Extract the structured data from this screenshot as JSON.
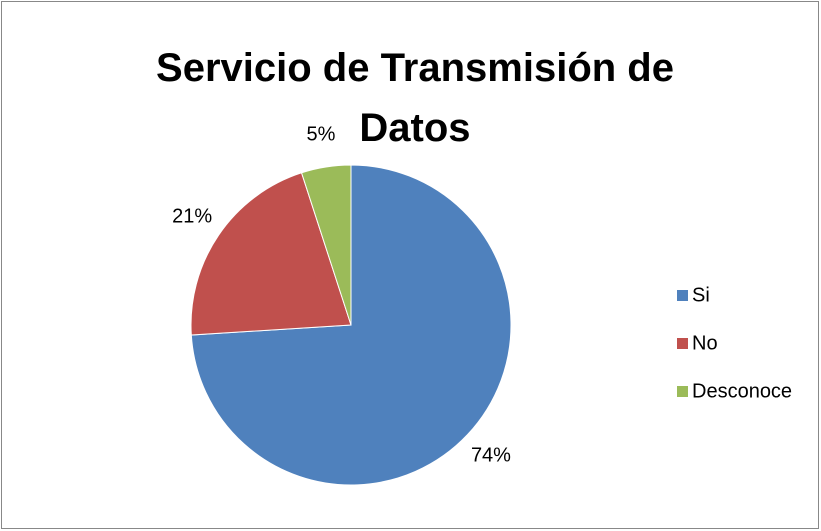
{
  "chart_data": {
    "type": "pie",
    "title": "Servicio de Transmisión de Datos",
    "categories": [
      "Si",
      "No",
      "Desconoce"
    ],
    "values": [
      74,
      21,
      5
    ],
    "value_labels": [
      "74%",
      "21%",
      "5%"
    ],
    "colors": [
      "#4f81bd",
      "#c0504d",
      "#9bbb59"
    ],
    "legend": "right"
  }
}
